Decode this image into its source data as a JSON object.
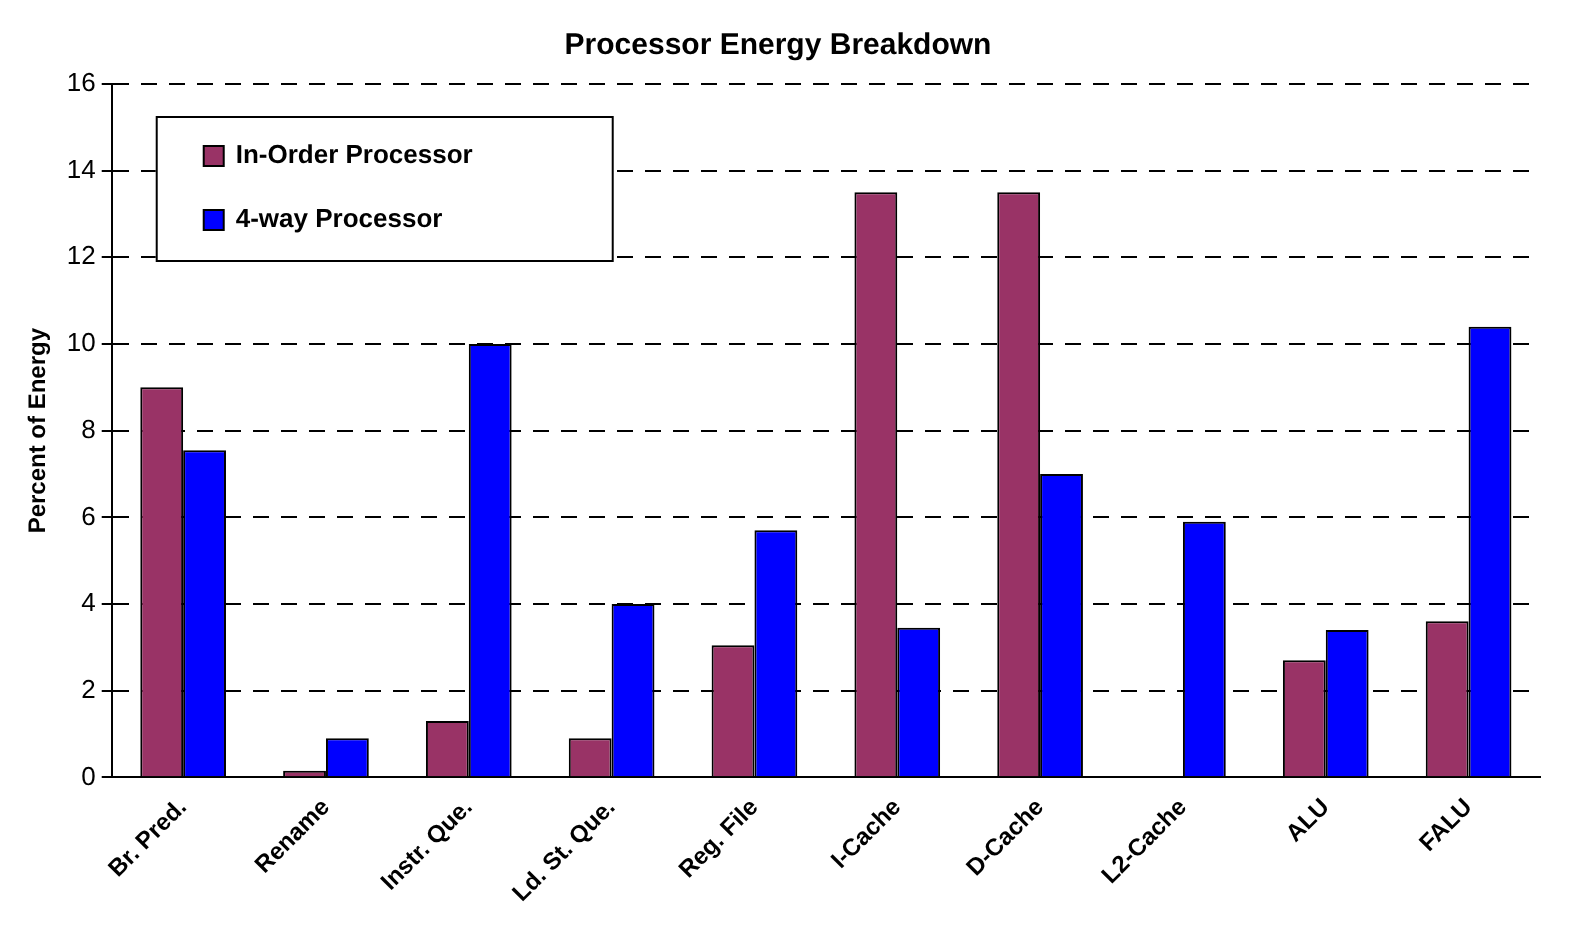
{
  "chart_data": {
    "type": "bar",
    "title": "Processor Energy Breakdown",
    "ylabel": "Percent of Energy",
    "categories": [
      "Br. Pred.",
      "Rename",
      "Instr. Que.",
      "Ld. St. Que.",
      "Reg. File",
      "I-Cache",
      "D-Cache",
      "L2-Cache",
      "ALU",
      "FALU"
    ],
    "series": [
      {
        "name": "In-Order Processor",
        "color": "#993366",
        "values": [
          9.0,
          0.15,
          1.3,
          0.9,
          3.05,
          13.5,
          13.5,
          0,
          2.7,
          3.6
        ]
      },
      {
        "name": "4-way Processor",
        "color": "#0000ff",
        "values": [
          7.55,
          0.9,
          10.0,
          4.0,
          5.7,
          3.45,
          7.0,
          5.9,
          3.4,
          10.4
        ]
      }
    ],
    "ylim": [
      0,
      16
    ],
    "yticks": [
      0,
      2,
      4,
      6,
      8,
      10,
      12,
      14,
      16
    ],
    "grid": "y",
    "legend": "top left"
  }
}
